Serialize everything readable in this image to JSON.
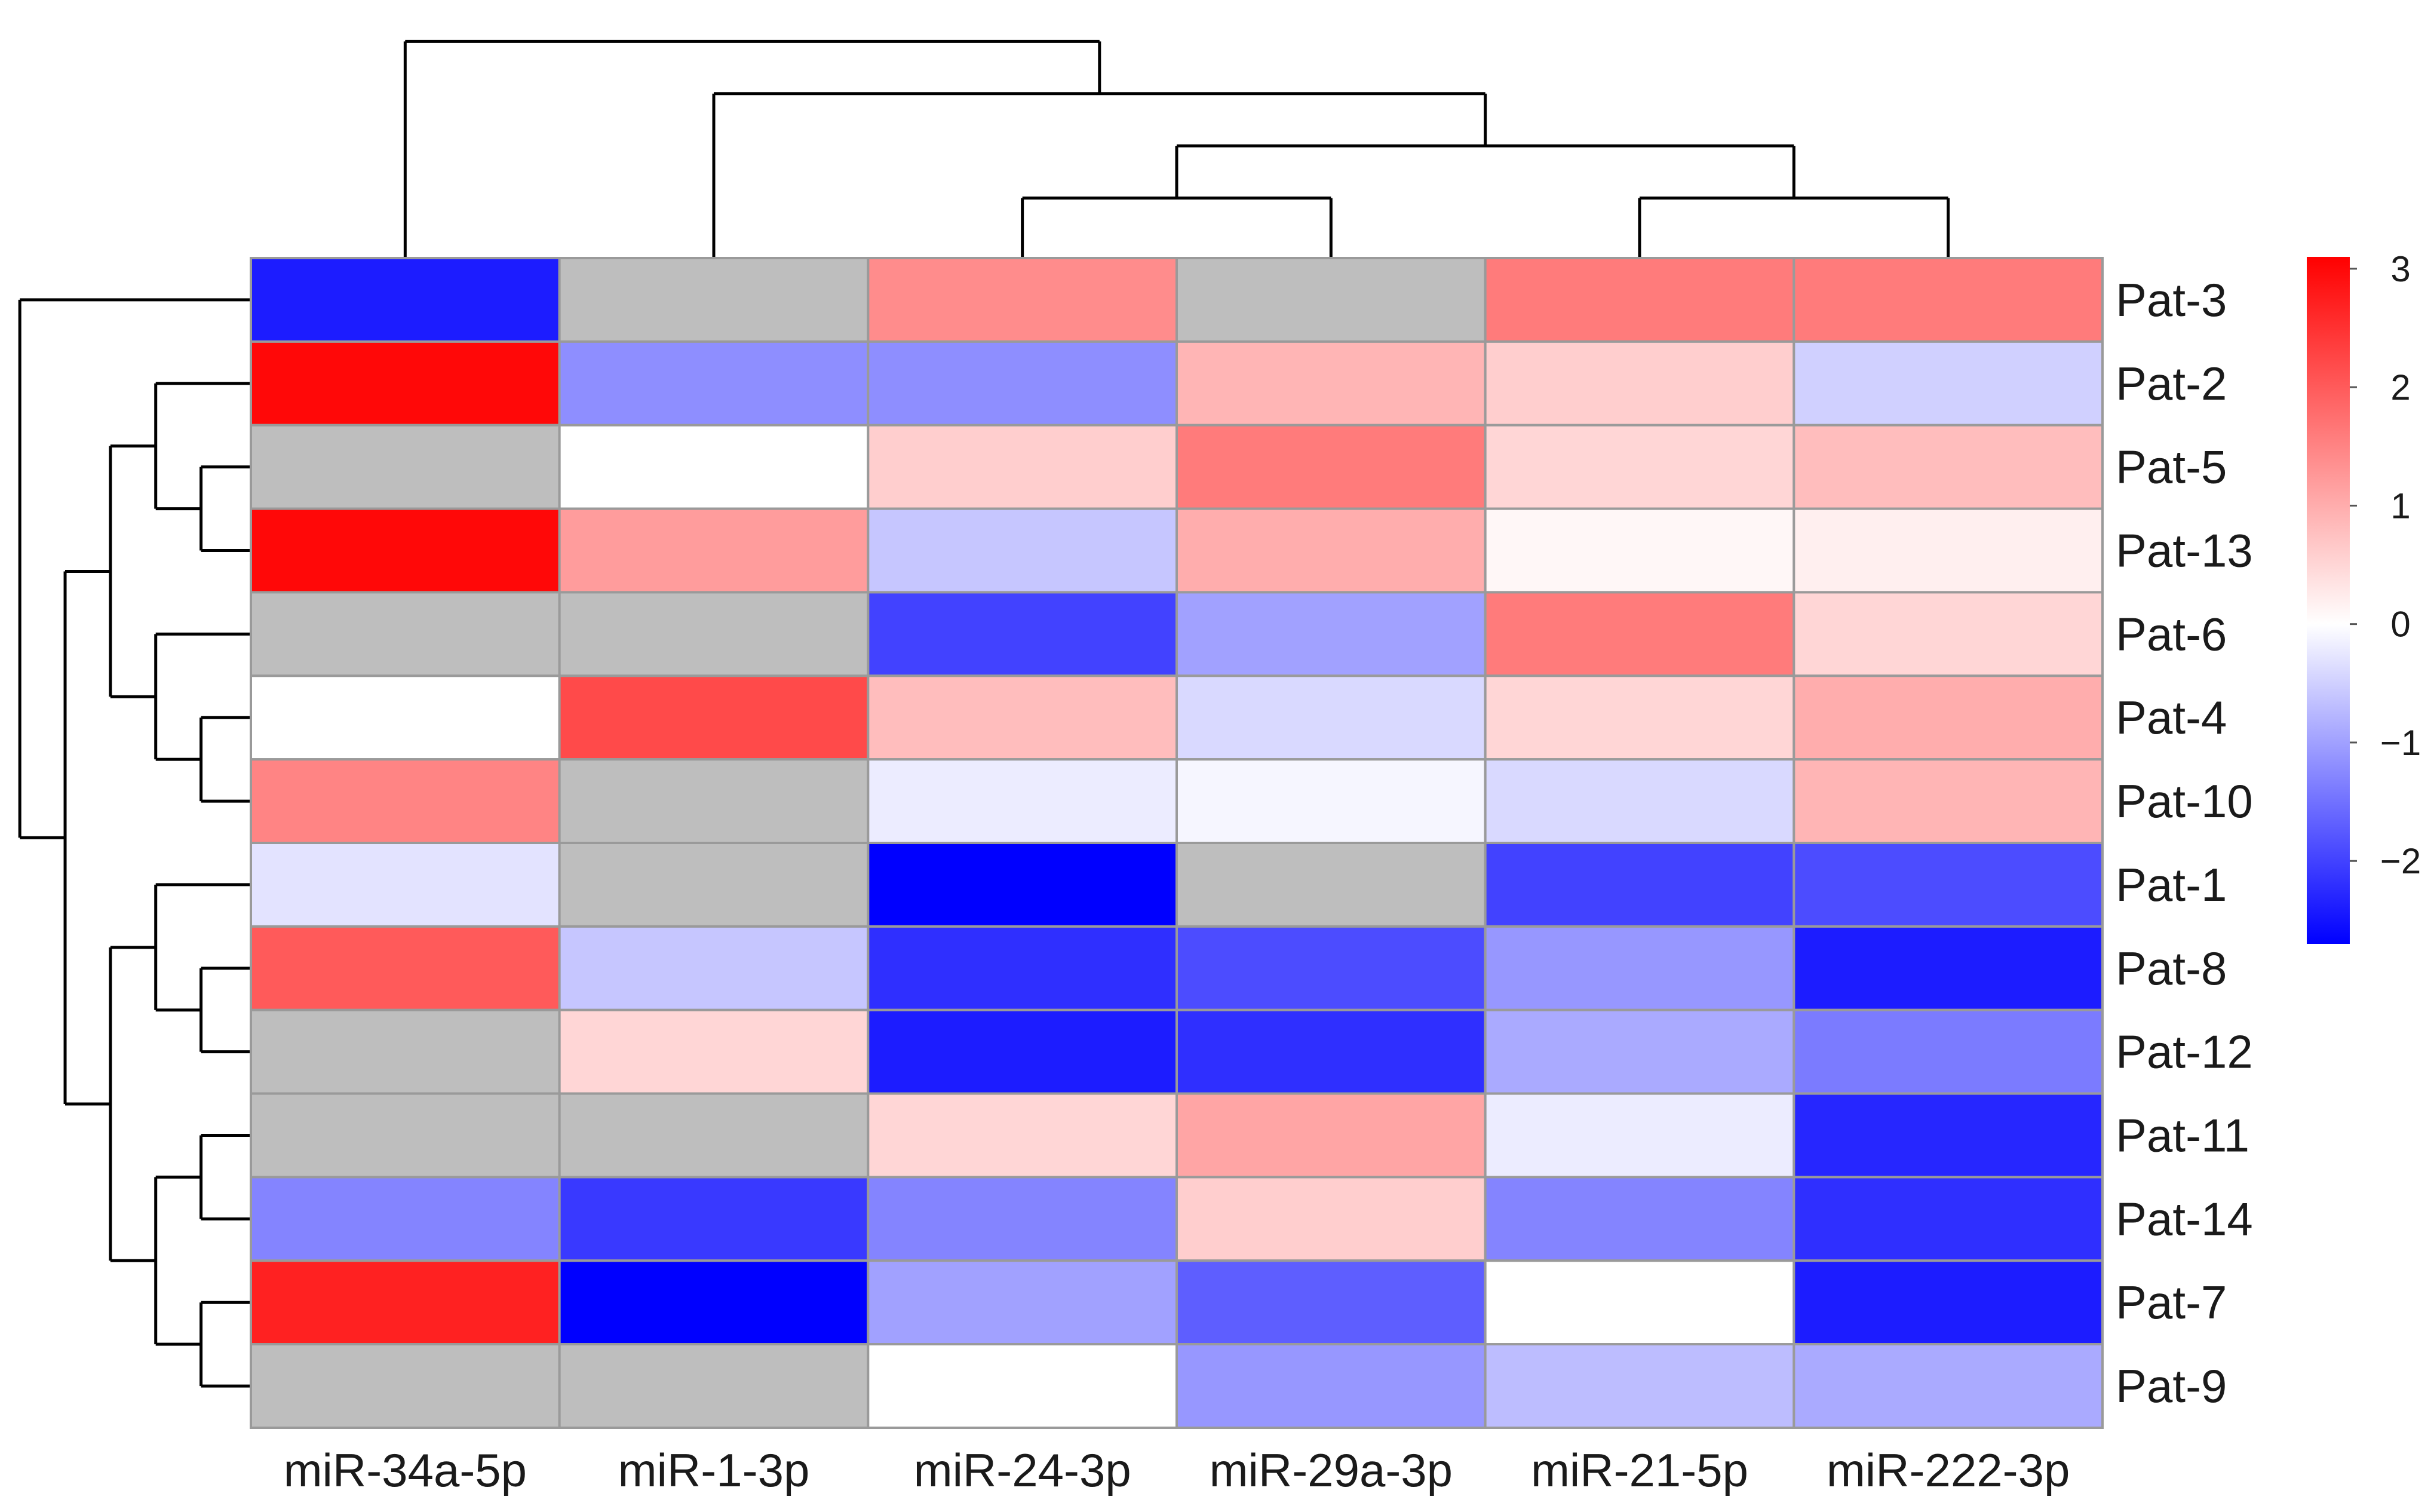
{
  "chart_data": {
    "type": "heatmap",
    "title": "",
    "xlabel": "",
    "ylabel": "",
    "columns": [
      "miR-34a-5p",
      "miR-1-3p",
      "miR-24-3p",
      "miR-29a-3p",
      "miR-21-5p",
      "miR-222-3p"
    ],
    "rows": [
      "Pat-3",
      "Pat-2",
      "Pat-5",
      "Pat-13",
      "Pat-6",
      "Pat-4",
      "Pat-10",
      "Pat-1",
      "Pat-8",
      "Pat-12",
      "Pat-11",
      "Pat-14",
      "Pat-7",
      "Pat-9"
    ],
    "values": [
      [
        -2.4,
        null,
        1.4,
        null,
        1.6,
        1.6
      ],
      [
        3.0,
        -1.2,
        -1.2,
        0.9,
        0.6,
        -0.5
      ],
      [
        null,
        0.0,
        0.6,
        1.6,
        0.5,
        0.8
      ],
      [
        3.0,
        1.2,
        -0.6,
        1.0,
        0.1,
        0.2
      ],
      [
        null,
        null,
        -2.0,
        -1.0,
        1.6,
        0.5
      ],
      [
        0.0,
        2.2,
        0.8,
        -0.4,
        0.5,
        1.0
      ],
      [
        1.5,
        null,
        -0.2,
        -0.1,
        -0.4,
        0.9
      ],
      [
        -0.3,
        null,
        -2.7,
        null,
        -2.0,
        -1.9
      ],
      [
        2.0,
        -0.6,
        -2.2,
        -1.9,
        -1.1,
        -2.4
      ],
      [
        null,
        0.5,
        -2.4,
        -2.2,
        -0.9,
        -1.4
      ],
      [
        null,
        null,
        0.5,
        1.1,
        -0.2,
        -2.3
      ],
      [
        -1.3,
        -2.1,
        -1.3,
        0.6,
        -1.3,
        -2.2
      ],
      [
        2.7,
        -2.7,
        -1.0,
        -1.7,
        0.0,
        -2.4
      ],
      [
        null,
        null,
        0.0,
        -1.1,
        -0.7,
        -0.9
      ]
    ],
    "color_scale": {
      "min": -2.7,
      "max": 3.1,
      "low_color": "#0000ff",
      "mid_color": "#ffffff",
      "high_color": "#ff0000",
      "missing_color": "#bebebe",
      "ticks": [
        3,
        2,
        1,
        0,
        -1,
        -2
      ],
      "tick_labels": [
        "3",
        "2",
        "1",
        "0",
        "−1",
        "−2"
      ]
    },
    "cell_border_color": "#9a9a9a",
    "dendrogram_color": "#000000",
    "column_dendrogram": "((miR-34a-5p),((miR-1-3p),((miR-24-3p,miR-29a-3p),(miR-21-5p,miR-222-3p))))",
    "row_dendrogram": "(Pat-3,(((Pat-2,(Pat-5,Pat-13)),(Pat-6,(Pat-4,Pat-10))),((Pat-1,(Pat-8,Pat-12)),((Pat-11,Pat-14),(Pat-7,Pat-9)))))",
    "legend_position": "right"
  }
}
